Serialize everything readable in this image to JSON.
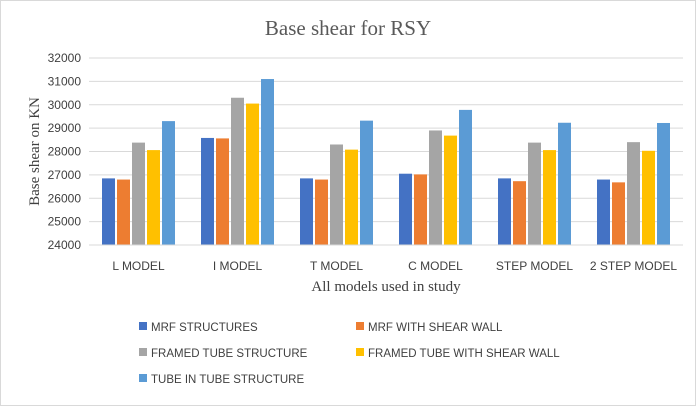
{
  "chart_data": {
    "type": "bar",
    "title": "Base shear for RSY",
    "xlabel": "All models used in study",
    "ylabel": "Base shear on KN",
    "ylim": [
      24000,
      32000
    ],
    "yticks": [
      24000,
      25000,
      26000,
      27000,
      28000,
      29000,
      30000,
      31000,
      32000
    ],
    "grid": true,
    "legend_position": "bottom",
    "categories": [
      "L MODEL",
      "I MODEL",
      "T MODEL",
      "C MODEL",
      "STEP MODEL",
      "2 STEP MODEL"
    ],
    "series": [
      {
        "name": "MRF STRUCTURES",
        "color": "#4472C4",
        "values": [
          26850,
          28580,
          26850,
          27050,
          26850,
          26800
        ]
      },
      {
        "name": "MRF WITH SHEAR WALL",
        "color": "#ED7D31",
        "values": [
          26800,
          28560,
          26800,
          27020,
          26730,
          26680
        ]
      },
      {
        "name": "FRAMED TUBE STRUCTURE",
        "color": "#A5A5A5",
        "values": [
          28380,
          30300,
          28300,
          28900,
          28380,
          28400
        ]
      },
      {
        "name": "FRAMED TUBE WITH SHEAR WALL",
        "color": "#FFC000",
        "values": [
          28060,
          30050,
          28080,
          28680,
          28060,
          28030
        ]
      },
      {
        "name": "TUBE IN TUBE STRUCTURE",
        "color": "#5B9BD5",
        "values": [
          29300,
          31100,
          29320,
          29780,
          29230,
          29220
        ]
      }
    ]
  }
}
